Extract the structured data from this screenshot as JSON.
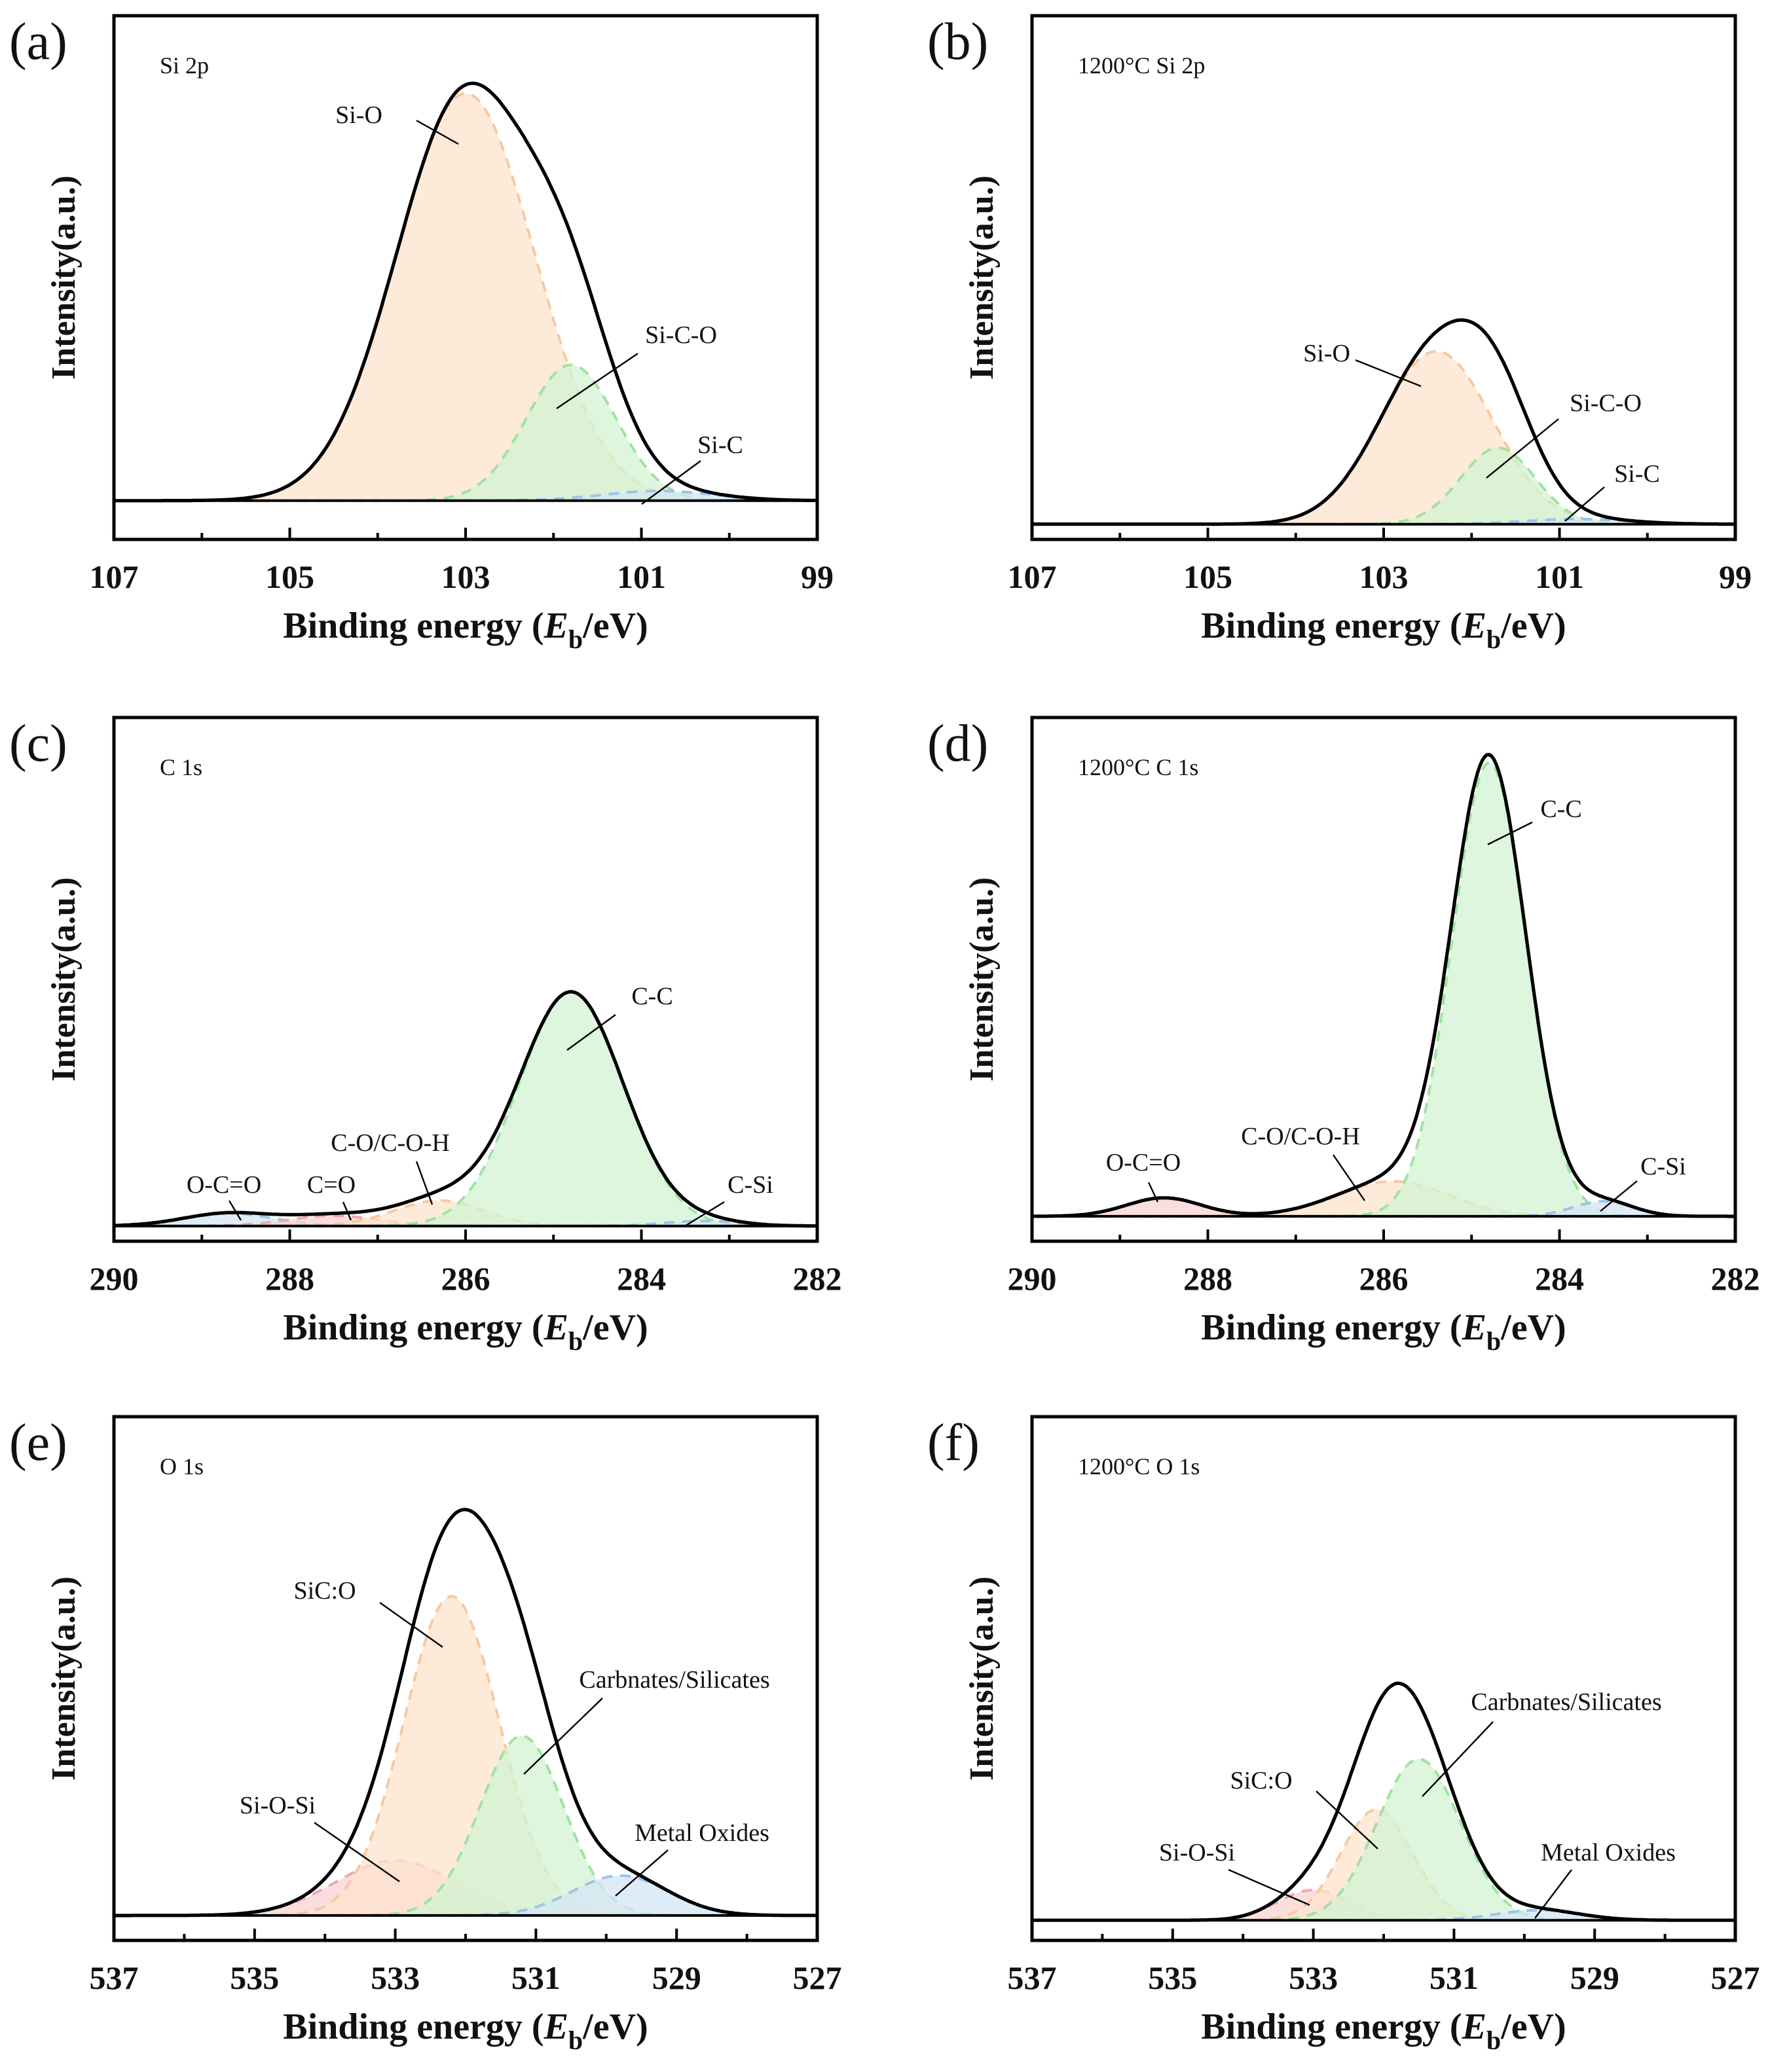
{
  "colors": {
    "orange": "#f7c9a0",
    "green": "#9fe3a0",
    "blue": "#9cc3ea",
    "red": "#f0a8a8",
    "envelope": "#000000"
  },
  "chart_data": [
    {
      "type": "line",
      "panel_label": "(a)",
      "title": "Si 2p",
      "xlabel_parts": [
        "Binding energy (",
        "E",
        "b",
        "/eV)"
      ],
      "ylabel": "Intensity(a.u.)",
      "xlim": [
        107,
        99
      ],
      "xticks": [
        "107",
        "105",
        "103",
        "101",
        "99"
      ],
      "ylim": [
        -8,
        100
      ],
      "components": [
        {
          "name": "Si-O",
          "center": 103.0,
          "fwhm": 1.85,
          "height": 84,
          "color": "orange"
        },
        {
          "name": "Si-C-O",
          "center": 101.8,
          "fwhm": 1.2,
          "height": 28,
          "color": "green"
        },
        {
          "name": "Si-C",
          "center": 100.8,
          "fwhm": 1.5,
          "height": 2,
          "color": "blue"
        }
      ]
    },
    {
      "type": "line",
      "panel_label": "(b)",
      "title": "1200°C Si 2p",
      "xlabel_parts": [
        "Binding energy (",
        "E",
        "b",
        "/eV)"
      ],
      "ylabel": "Intensity(a.u.)",
      "xlim": [
        107,
        99
      ],
      "xticks": [
        "107",
        "105",
        "103",
        "101",
        "99"
      ],
      "ylim": [
        -3,
        100
      ],
      "components": [
        {
          "name": "Si-O",
          "center": 102.4,
          "fwhm": 1.5,
          "height": 34,
          "color": "orange"
        },
        {
          "name": "Si-C-O",
          "center": 101.7,
          "fwhm": 1.0,
          "height": 15,
          "color": "green"
        },
        {
          "name": "Si-C",
          "center": 100.8,
          "fwhm": 1.4,
          "height": 1,
          "color": "blue"
        }
      ]
    },
    {
      "type": "line",
      "panel_label": "(c)",
      "title": "C 1s",
      "xlabel_parts": [
        "Binding energy (",
        "E",
        "b",
        "/eV)"
      ],
      "ylabel": "Intensity(a.u.)",
      "xlim": [
        290,
        282
      ],
      "xticks": [
        "290",
        "288",
        "286",
        "284",
        "282"
      ],
      "ylim": [
        -3,
        100
      ],
      "components": [
        {
          "name": "O-C=O",
          "center": 288.7,
          "fwhm": 1.2,
          "height": 2.5,
          "color": "blue"
        },
        {
          "name": "C=O",
          "center": 287.5,
          "fwhm": 1.2,
          "height": 2,
          "color": "red"
        },
        {
          "name": "C-O/C-O-H",
          "center": 286.3,
          "fwhm": 1.2,
          "height": 5,
          "color": "orange"
        },
        {
          "name": "C-C",
          "center": 284.8,
          "fwhm": 1.4,
          "height": 46,
          "color": "green"
        },
        {
          "name": "C-Si",
          "center": 283.3,
          "fwhm": 1.0,
          "height": 1,
          "color": "blue"
        }
      ]
    },
    {
      "type": "line",
      "panel_label": "(d)",
      "title": "1200°C C 1s",
      "xlabel_parts": [
        "Binding energy (",
        "E",
        "b",
        "/eV)"
      ],
      "ylabel": "Intensity(a.u.)",
      "xlim": [
        290,
        282
      ],
      "xticks": [
        "290",
        "288",
        "286",
        "284",
        "282"
      ],
      "ylim": [
        -5,
        100
      ],
      "components": [
        {
          "name": "O-C=O",
          "center": 288.5,
          "fwhm": 1.0,
          "height": 3.7,
          "color": "red"
        },
        {
          "name": "C-O/C-O-H",
          "center": 285.9,
          "fwhm": 1.5,
          "height": 7,
          "color": "orange"
        },
        {
          "name": "C-C",
          "center": 284.8,
          "fwhm": 1.0,
          "height": 91,
          "color": "green"
        },
        {
          "name": "C-Si",
          "center": 283.5,
          "fwhm": 0.8,
          "height": 3,
          "color": "blue"
        }
      ]
    },
    {
      "type": "line",
      "panel_label": "(e)",
      "title": "O 1s",
      "xlabel_parts": [
        "Binding energy (",
        "E",
        "b",
        "/eV)"
      ],
      "ylabel": "Intensity(a.u.)",
      "xlim": [
        537,
        527
      ],
      "xticks": [
        "537",
        "535",
        "533",
        "531",
        "529",
        "527"
      ],
      "ylim": [
        -5,
        100
      ],
      "components": [
        {
          "name": "Si-O-Si",
          "center": 533.0,
          "fwhm": 2.0,
          "height": 11,
          "color": "red"
        },
        {
          "name": "SiC:O",
          "center": 532.2,
          "fwhm": 1.6,
          "height": 64,
          "color": "orange"
        },
        {
          "name": "Carbnates/Silicates",
          "center": 531.2,
          "fwhm": 1.4,
          "height": 36,
          "color": "green"
        },
        {
          "name": "Metal Oxides",
          "center": 529.8,
          "fwhm": 1.6,
          "height": 8,
          "color": "blue"
        }
      ]
    },
    {
      "type": "line",
      "panel_label": "(f)",
      "title": "1200°C O 1s",
      "xlabel_parts": [
        "Binding energy (",
        "E",
        "b",
        "/eV)"
      ],
      "ylabel": "Intensity(a.u.)",
      "xlim": [
        537,
        527
      ],
      "xticks": [
        "537",
        "535",
        "533",
        "531",
        "529",
        "527"
      ],
      "ylim": [
        -4,
        100
      ],
      "components": [
        {
          "name": "Si-O-Si",
          "center": 533.0,
          "fwhm": 1.2,
          "height": 6,
          "color": "red"
        },
        {
          "name": "SiC:O",
          "center": 532.1,
          "fwhm": 1.2,
          "height": 22,
          "color": "orange"
        },
        {
          "name": "Carbnates/Silicates",
          "center": 531.5,
          "fwhm": 1.4,
          "height": 32,
          "color": "green"
        },
        {
          "name": "Metal Oxides",
          "center": 529.8,
          "fwhm": 1.4,
          "height": 2,
          "color": "blue"
        }
      ]
    }
  ]
}
